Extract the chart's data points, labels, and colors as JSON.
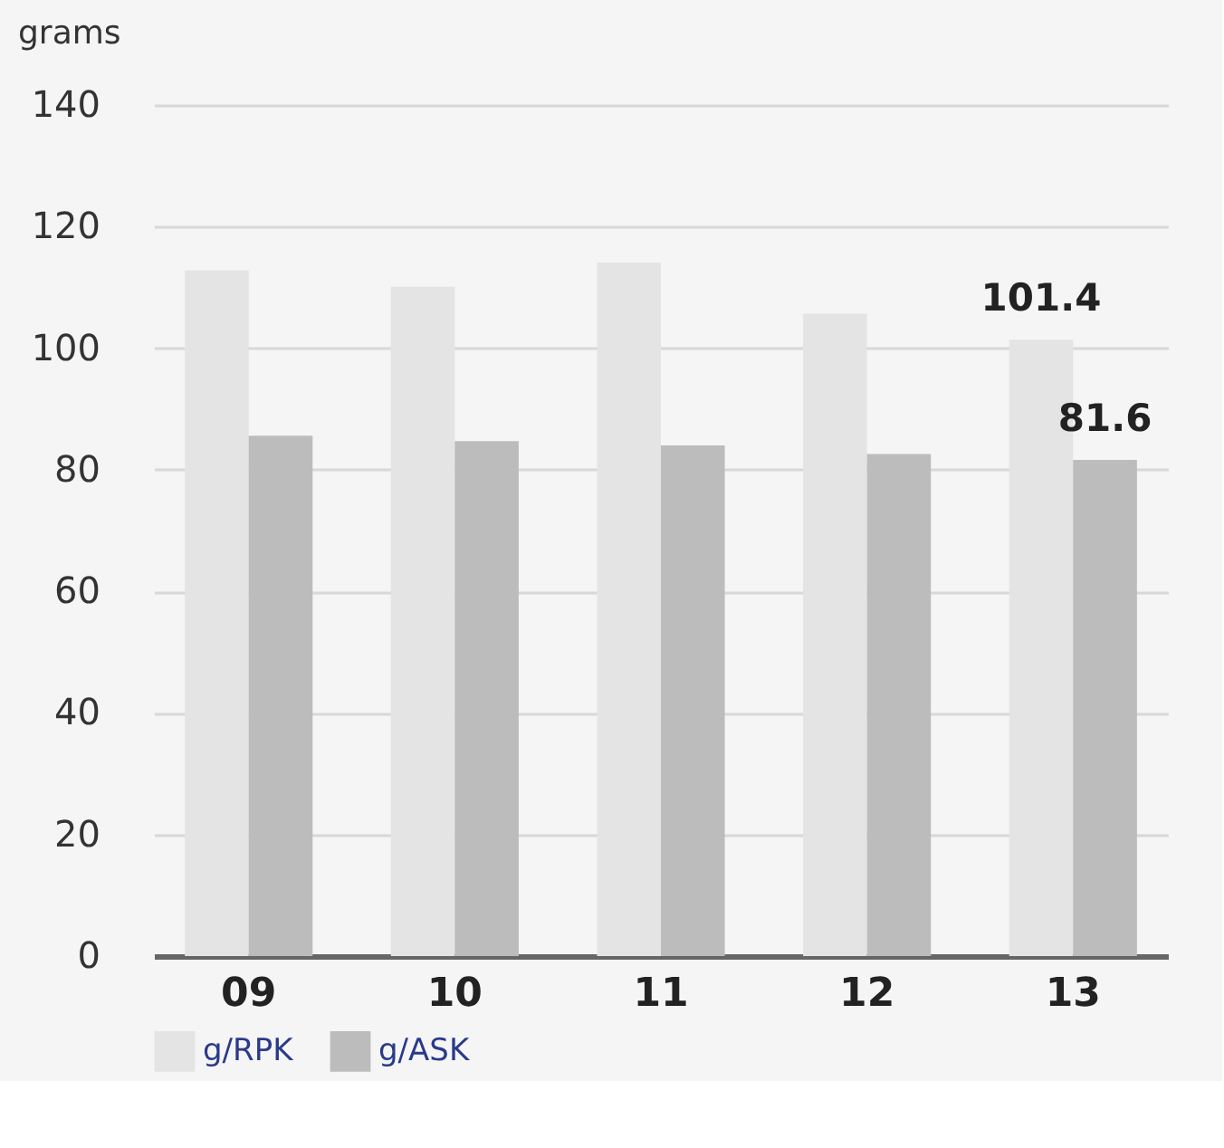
{
  "chart_data": {
    "type": "bar",
    "ylabel": "grams",
    "categories": [
      "09",
      "10",
      "11",
      "12",
      "13"
    ],
    "series": [
      {
        "name": "g/RPK",
        "color": "#e4e4e4",
        "values": [
          112.8,
          110.1,
          114.1,
          105.7,
          101.4
        ],
        "value_labels": [
          null,
          null,
          null,
          null,
          "101.4"
        ]
      },
      {
        "name": "g/ASK",
        "color": "#bcbcbc",
        "values": [
          85.6,
          84.7,
          84.0,
          82.6,
          81.6
        ],
        "value_labels": [
          null,
          null,
          null,
          null,
          "81.6"
        ]
      }
    ],
    "ylim": [
      0,
      140
    ],
    "yticks": [
      0,
      20,
      40,
      60,
      80,
      100,
      120,
      140
    ],
    "grid": "y",
    "legend": "bottom left"
  }
}
